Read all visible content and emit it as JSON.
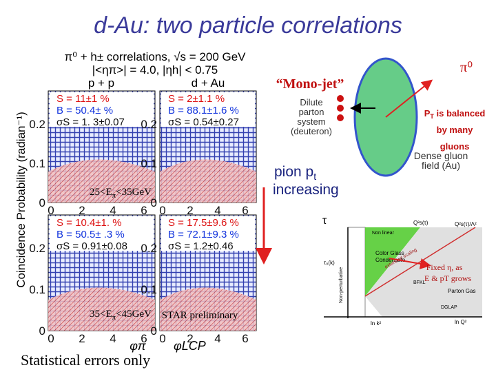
{
  "slide": {
    "title": "d-Au: two particle correlations",
    "footer": "Statistical errors only"
  },
  "figure": {
    "header_line1": "π⁰ + h± correlations, √s = 200 GeV",
    "header_line2": "|<ηπ>| = 4.0, |ηh| < 0.75",
    "col_labels": [
      "p + p",
      "d + Au"
    ],
    "y_axis_label": "Coincidence Probability (radian⁻¹)",
    "y_ticks": [
      "0.2",
      "0.1",
      "0"
    ],
    "x_ticks": [
      "0",
      "2",
      "4",
      "6"
    ],
    "x_axis_labels": [
      "φπ",
      "φLCP"
    ],
    "panels": [
      {
        "stats": [
          "S = 11±1 %",
          "B = 50.4±  %",
          "σS = 1. 3±0.07"
        ]
      },
      {
        "stats": [
          "S = 2±1.1 %",
          "B = 88.1±1.6 %",
          "σS = 0.54±0.27"
        ]
      },
      {
        "stats": [
          "S = 10.4±1. %",
          "B = 50.5± .3 %",
          "σS = 0.91±0.08"
        ]
      },
      {
        "stats": [
          "S = 17.5±9.6 %",
          "B = 72.1±9.3 %",
          "σS = 1.2±0.46"
        ]
      }
    ],
    "energy_bins": [
      [
        "25<E",
        "π",
        "<35GeV"
      ],
      [
        "35<E",
        "π",
        "<45GeV"
      ]
    ],
    "watermark": "STAR preliminary"
  },
  "cartoon": {
    "pi0": "π⁰",
    "mono_jet": "“Mono-jet”",
    "dilute": [
      "Dilute",
      "parton",
      "system",
      "(deuteron)"
    ],
    "balanced": [
      "P",
      "T",
      " is balanced",
      "by many",
      "gluons"
    ],
    "dense": [
      "Dense gluon",
      "field (Au)"
    ],
    "pion_pt": [
      "pion p",
      "t",
      "increasing"
    ]
  },
  "phase_diagram": {
    "tau": "τ",
    "non_linear": "Non linear",
    "cgc": [
      "Color Glass",
      "Condensate"
    ],
    "parton_gas": "Parton Gas",
    "non_perturbative": "Non-perturbative",
    "bfkl": "BFKL",
    "dglap": "DGLAP",
    "ln_q2": "ln Q²",
    "ln_k2": "ln k²",
    "tau0": "τ₀(k)",
    "qs": "Q²s(τ)",
    "qs_l": "Q²s(τ)/Λ²",
    "scaling": "extended scaling",
    "fixed": [
      "Fixed η, as",
      "E & pT grows"
    ]
  }
}
